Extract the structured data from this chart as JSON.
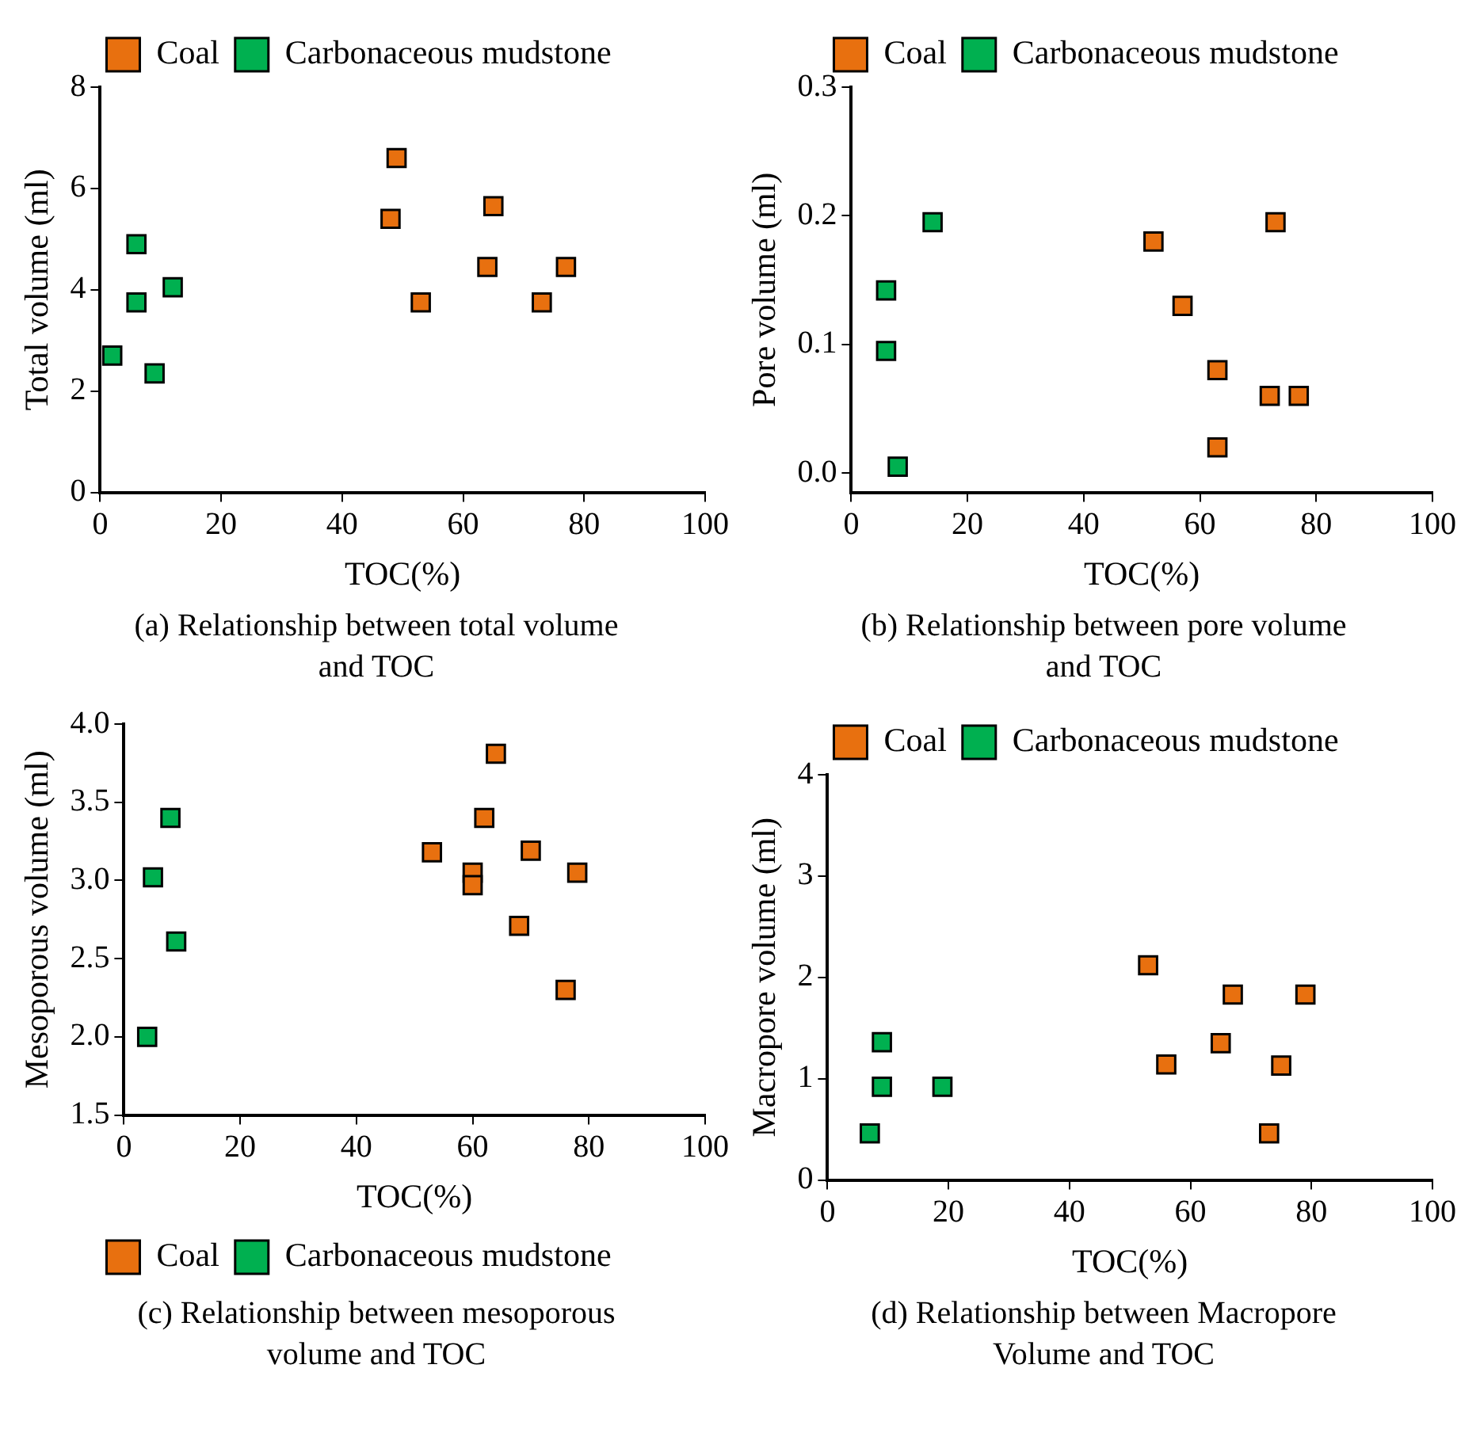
{
  "chart_data": [
    {
      "type": "scatter",
      "title": "(a) Relationship between total volume and TOC",
      "xlabel": "TOC(%)",
      "ylabel": "Total volume (ml)",
      "xlim": [
        0,
        100
      ],
      "xticks": [
        0,
        20,
        40,
        60,
        80,
        100
      ],
      "ylim": [
        0,
        8
      ],
      "yticks": [
        0,
        2,
        4,
        6,
        8
      ],
      "legend": "top",
      "marker": "square",
      "series": [
        {
          "name": "Coal",
          "color": "#e8700f",
          "x": [
            49,
            48,
            65,
            64,
            77,
            53,
            73
          ],
          "values": [
            6.6,
            5.4,
            5.65,
            4.45,
            4.45,
            3.75,
            3.75
          ]
        },
        {
          "name": "Carbonaceous mudstone",
          "color": "#00b050",
          "x": [
            6,
            6,
            12,
            2,
            9
          ],
          "values": [
            4.9,
            3.75,
            4.05,
            2.7,
            2.35
          ]
        }
      ]
    },
    {
      "type": "scatter",
      "title": "(b) Relationship between pore volume and TOC",
      "xlabel": "TOC(%)",
      "ylabel": "Pore volume (ml)",
      "xlim": [
        0,
        100
      ],
      "xticks": [
        0,
        20,
        40,
        60,
        80,
        100
      ],
      "ylim": [
        -0.015,
        0.3
      ],
      "yticks": [
        {
          "value": 0,
          "label": "0.0"
        },
        0.1,
        0.2,
        0.3
      ],
      "legend": "top",
      "marker": "square",
      "series": [
        {
          "name": "Coal",
          "color": "#e8700f",
          "x": [
            52,
            73,
            57,
            63,
            72,
            77,
            63
          ],
          "values": [
            0.18,
            0.195,
            0.13,
            0.08,
            0.06,
            0.06,
            0.02
          ]
        },
        {
          "name": "Carbonaceous mudstone",
          "color": "#00b050",
          "x": [
            14,
            6,
            6,
            8
          ],
          "values": [
            0.195,
            0.142,
            0.095,
            0.005
          ]
        }
      ]
    },
    {
      "type": "scatter",
      "title": "(c) Relationship between mesoporous volume and TOC",
      "xlabel": "TOC(%)",
      "ylabel": "Mesoporous volume (ml)",
      "xlim": [
        0,
        100
      ],
      "xticks": [
        0,
        20,
        40,
        60,
        80,
        100
      ],
      "ylim": [
        1.5,
        4
      ],
      "yticks": [
        1.5,
        {
          "value": 2,
          "label": "2.0"
        },
        2.5,
        {
          "value": 3,
          "label": "3.0"
        },
        3.5,
        {
          "value": 4,
          "label": "4.0"
        }
      ],
      "legend": "bottom",
      "marker": "square",
      "series": [
        {
          "name": "Coal",
          "color": "#e8700f",
          "x": [
            64,
            62,
            53,
            60,
            60,
            70,
            78,
            68,
            76
          ],
          "values": [
            3.81,
            3.4,
            3.18,
            3.05,
            2.97,
            3.19,
            3.05,
            2.71,
            2.3
          ]
        },
        {
          "name": "Carbonaceous mudstone",
          "color": "#00b050",
          "x": [
            8,
            5,
            9,
            4
          ],
          "values": [
            3.4,
            3.02,
            2.61,
            2.0
          ]
        }
      ]
    },
    {
      "type": "scatter",
      "title": "(d) Relationship between Macropore Volume and TOC",
      "xlabel": "TOC(%)",
      "ylabel": "Macropore volume (ml)",
      "xlim": [
        0,
        100
      ],
      "xticks": [
        0,
        20,
        40,
        60,
        80,
        100
      ],
      "ylim": [
        0,
        4
      ],
      "yticks": [
        0,
        1,
        2,
        3,
        4
      ],
      "legend": "top",
      "marker": "square",
      "series": [
        {
          "name": "Coal",
          "color": "#e8700f",
          "x": [
            53,
            67,
            79,
            65,
            56,
            75,
            73
          ],
          "values": [
            2.12,
            1.83,
            1.83,
            1.35,
            1.14,
            1.13,
            0.46
          ]
        },
        {
          "name": "Carbonaceous mudstone",
          "color": "#00b050",
          "x": [
            9,
            9,
            19,
            7
          ],
          "values": [
            1.36,
            0.92,
            0.92,
            0.46
          ]
        }
      ]
    }
  ]
}
